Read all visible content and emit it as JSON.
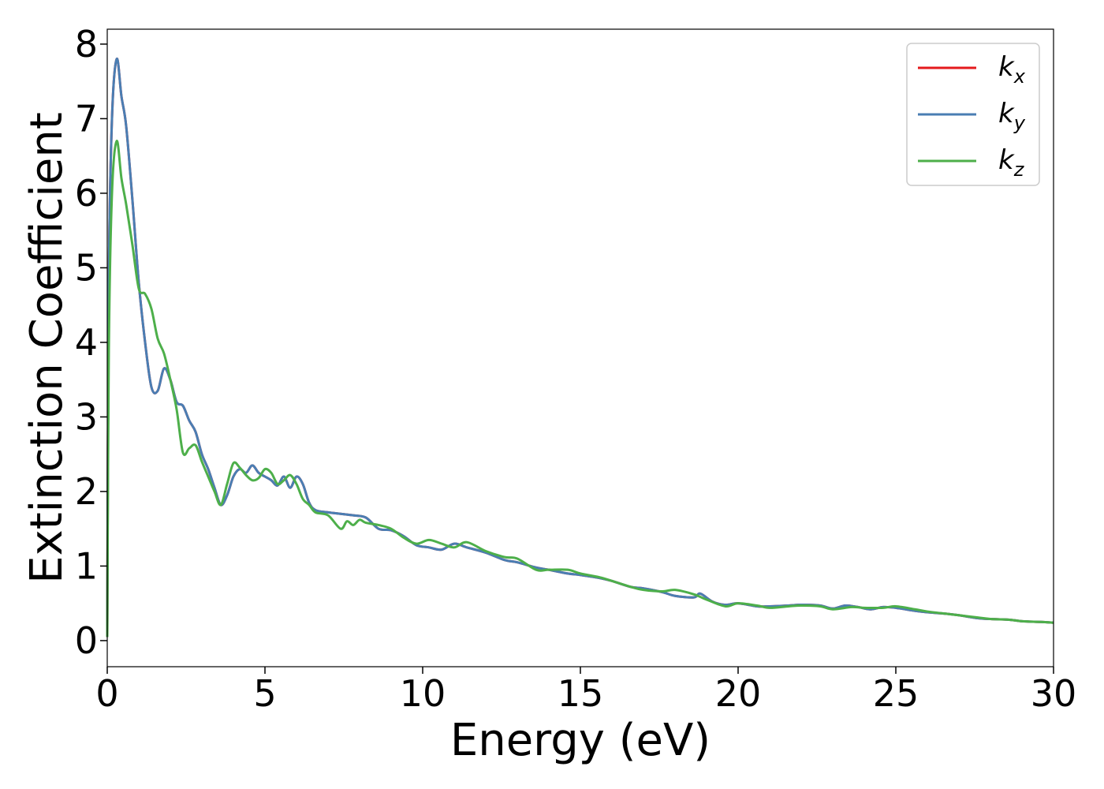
{
  "chart_data": {
    "type": "line",
    "title": "",
    "xlabel": "Energy (eV)",
    "ylabel": "Extinction Coefficient",
    "xlim": [
      0,
      30
    ],
    "ylim": [
      -0.35,
      8.2
    ],
    "xticks": [
      0,
      5,
      10,
      15,
      20,
      25,
      30
    ],
    "xtick_labels": [
      "0",
      "5",
      "10",
      "15",
      "20",
      "25",
      "30"
    ],
    "yticks": [
      0,
      1,
      2,
      3,
      4,
      5,
      6,
      7,
      8
    ],
    "ytick_labels": [
      "0",
      "1",
      "2",
      "3",
      "4",
      "5",
      "6",
      "7",
      "8"
    ],
    "grid": false,
    "legend_position": "top-right",
    "series": [
      {
        "name": "k_x",
        "label_main": "k",
        "label_sub": "x",
        "color": "#e41a1c",
        "x": [
          0,
          0.05,
          0.15,
          0.3,
          0.45,
          0.6,
          0.8,
          1.0,
          1.2,
          1.4,
          1.6,
          1.8,
          2.0,
          2.2,
          2.4,
          2.6,
          2.8,
          3.0,
          3.2,
          3.4,
          3.6,
          3.8,
          4.0,
          4.2,
          4.4,
          4.6,
          4.8,
          5.0,
          5.2,
          5.4,
          5.6,
          5.8,
          6.0,
          6.2,
          6.4,
          6.6,
          7.0,
          7.4,
          7.8,
          8.2,
          8.6,
          9.0,
          9.4,
          9.8,
          10.2,
          10.6,
          11.0,
          11.4,
          12.0,
          12.6,
          13.0,
          13.6,
          14.0,
          14.6,
          15.0,
          15.6,
          16.0,
          16.6,
          17.0,
          17.6,
          18.0,
          18.6,
          18.8,
          19.2,
          19.6,
          20.0,
          20.6,
          21.0,
          21.6,
          22.0,
          22.6,
          23.0,
          23.4,
          23.8,
          24.2,
          24.6,
          25.0,
          25.6,
          26.0,
          26.6,
          27.0,
          27.6,
          28.0,
          28.6,
          29.0,
          29.6,
          30.0
        ],
        "y": [
          0.05,
          4.8,
          7.0,
          7.8,
          7.3,
          6.9,
          5.9,
          4.8,
          4.0,
          3.4,
          3.35,
          3.65,
          3.5,
          3.2,
          3.15,
          2.95,
          2.8,
          2.5,
          2.3,
          2.05,
          1.82,
          1.95,
          2.2,
          2.3,
          2.25,
          2.35,
          2.25,
          2.2,
          2.15,
          2.08,
          2.2,
          2.05,
          2.2,
          2.1,
          1.85,
          1.75,
          1.72,
          1.7,
          1.68,
          1.65,
          1.5,
          1.48,
          1.4,
          1.28,
          1.25,
          1.22,
          1.3,
          1.25,
          1.18,
          1.08,
          1.05,
          0.98,
          0.95,
          0.9,
          0.88,
          0.84,
          0.8,
          0.72,
          0.7,
          0.65,
          0.6,
          0.58,
          0.63,
          0.52,
          0.48,
          0.5,
          0.46,
          0.46,
          0.47,
          0.48,
          0.47,
          0.43,
          0.47,
          0.45,
          0.42,
          0.45,
          0.44,
          0.4,
          0.38,
          0.36,
          0.34,
          0.3,
          0.29,
          0.28,
          0.26,
          0.25,
          0.24
        ]
      },
      {
        "name": "k_y",
        "label_main": "k",
        "label_sub": "y",
        "color": "#4a7eb3",
        "x": [
          0,
          0.05,
          0.15,
          0.3,
          0.45,
          0.6,
          0.8,
          1.0,
          1.2,
          1.4,
          1.6,
          1.8,
          2.0,
          2.2,
          2.4,
          2.6,
          2.8,
          3.0,
          3.2,
          3.4,
          3.6,
          3.8,
          4.0,
          4.2,
          4.4,
          4.6,
          4.8,
          5.0,
          5.2,
          5.4,
          5.6,
          5.8,
          6.0,
          6.2,
          6.4,
          6.6,
          7.0,
          7.4,
          7.8,
          8.2,
          8.6,
          9.0,
          9.4,
          9.8,
          10.2,
          10.6,
          11.0,
          11.4,
          12.0,
          12.6,
          13.0,
          13.6,
          14.0,
          14.6,
          15.0,
          15.6,
          16.0,
          16.6,
          17.0,
          17.6,
          18.0,
          18.6,
          18.8,
          19.2,
          19.6,
          20.0,
          20.6,
          21.0,
          21.6,
          22.0,
          22.6,
          23.0,
          23.4,
          23.8,
          24.2,
          24.6,
          25.0,
          25.6,
          26.0,
          26.6,
          27.0,
          27.6,
          28.0,
          28.6,
          29.0,
          29.6,
          30.0
        ],
        "y": [
          0.05,
          4.8,
          7.0,
          7.8,
          7.3,
          6.9,
          5.9,
          4.8,
          4.0,
          3.4,
          3.35,
          3.65,
          3.5,
          3.2,
          3.15,
          2.95,
          2.8,
          2.5,
          2.3,
          2.05,
          1.82,
          1.95,
          2.2,
          2.3,
          2.25,
          2.35,
          2.25,
          2.2,
          2.15,
          2.08,
          2.2,
          2.05,
          2.2,
          2.1,
          1.85,
          1.75,
          1.72,
          1.7,
          1.68,
          1.65,
          1.5,
          1.48,
          1.4,
          1.28,
          1.25,
          1.22,
          1.3,
          1.25,
          1.18,
          1.08,
          1.05,
          0.98,
          0.95,
          0.9,
          0.88,
          0.84,
          0.8,
          0.72,
          0.7,
          0.65,
          0.6,
          0.58,
          0.63,
          0.52,
          0.48,
          0.5,
          0.46,
          0.46,
          0.47,
          0.48,
          0.47,
          0.43,
          0.47,
          0.45,
          0.42,
          0.45,
          0.44,
          0.4,
          0.38,
          0.36,
          0.34,
          0.3,
          0.29,
          0.28,
          0.26,
          0.25,
          0.24
        ]
      },
      {
        "name": "k_z",
        "label_main": "k",
        "label_sub": "z",
        "color": "#4daf4a",
        "x": [
          0,
          0.05,
          0.15,
          0.3,
          0.45,
          0.6,
          0.8,
          1.0,
          1.2,
          1.4,
          1.6,
          1.8,
          2.0,
          2.2,
          2.4,
          2.6,
          2.8,
          3.0,
          3.2,
          3.4,
          3.6,
          3.8,
          4.0,
          4.2,
          4.4,
          4.6,
          4.8,
          5.0,
          5.2,
          5.4,
          5.6,
          5.8,
          6.0,
          6.2,
          6.4,
          6.6,
          7.0,
          7.4,
          7.6,
          7.8,
          8.0,
          8.2,
          8.6,
          9.0,
          9.4,
          9.8,
          10.2,
          10.6,
          11.0,
          11.4,
          12.0,
          12.6,
          13.0,
          13.6,
          14.0,
          14.6,
          15.0,
          15.6,
          16.0,
          16.6,
          17.0,
          17.6,
          18.0,
          18.6,
          19.0,
          19.6,
          20.0,
          20.6,
          21.0,
          21.6,
          22.0,
          22.6,
          23.0,
          23.6,
          24.0,
          24.6,
          25.0,
          25.6,
          26.0,
          26.6,
          27.0,
          27.6,
          28.0,
          28.6,
          29.0,
          29.6,
          30.0
        ],
        "y": [
          0.05,
          3.9,
          6.0,
          6.7,
          6.2,
          5.85,
          5.3,
          4.72,
          4.65,
          4.45,
          4.05,
          3.85,
          3.5,
          3.1,
          2.52,
          2.58,
          2.62,
          2.4,
          2.2,
          2.0,
          1.82,
          2.1,
          2.38,
          2.32,
          2.22,
          2.15,
          2.18,
          2.3,
          2.25,
          2.1,
          2.15,
          2.22,
          2.1,
          1.9,
          1.82,
          1.72,
          1.68,
          1.5,
          1.6,
          1.55,
          1.62,
          1.58,
          1.55,
          1.5,
          1.38,
          1.3,
          1.35,
          1.3,
          1.25,
          1.32,
          1.2,
          1.12,
          1.1,
          0.95,
          0.95,
          0.95,
          0.9,
          0.85,
          0.8,
          0.72,
          0.68,
          0.66,
          0.68,
          0.62,
          0.55,
          0.46,
          0.5,
          0.47,
          0.44,
          0.46,
          0.47,
          0.46,
          0.42,
          0.45,
          0.44,
          0.44,
          0.46,
          0.42,
          0.39,
          0.36,
          0.34,
          0.31,
          0.29,
          0.28,
          0.26,
          0.25,
          0.24
        ]
      }
    ]
  }
}
